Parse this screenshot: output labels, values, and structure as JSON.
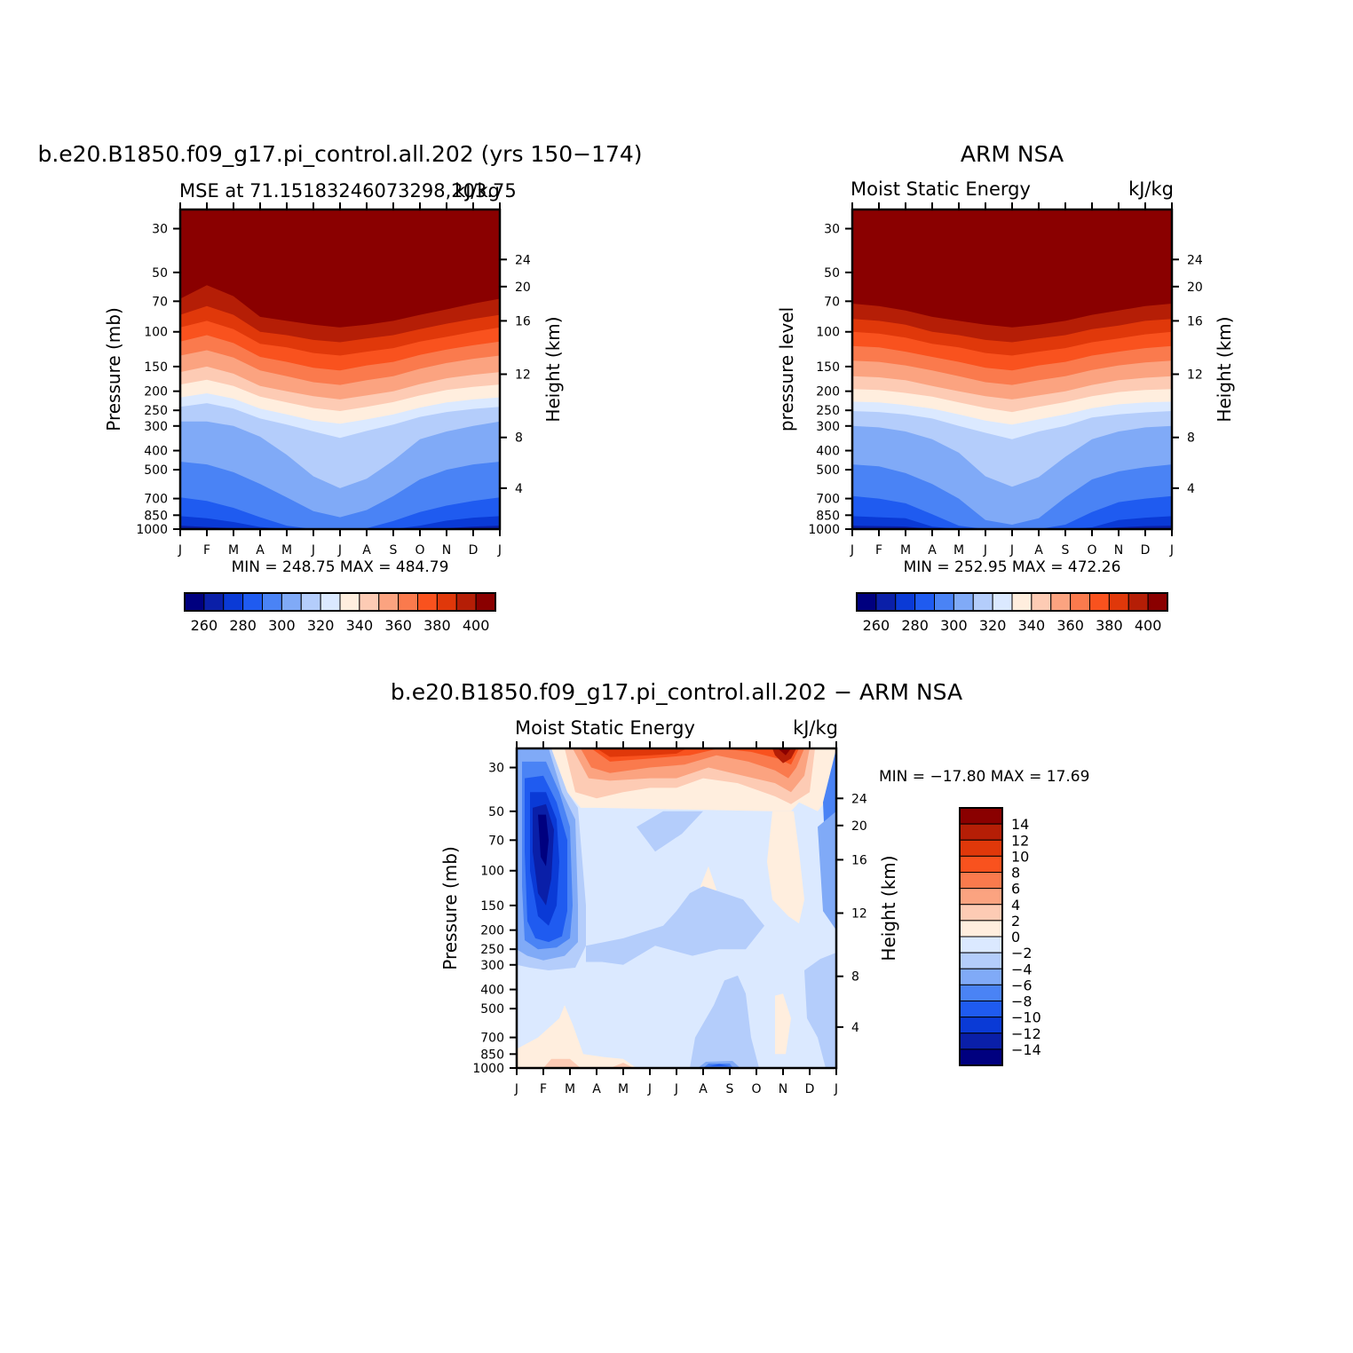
{
  "chart_data": [
    {
      "type": "heatmap",
      "title": "b.e20.B1850.f09_g17.pi_control.all.202 (yrs 150-174)",
      "subtitle_left": "MSE at 71.15183246073298,203.75",
      "subtitle_right": "kJ/kg",
      "ylabel_left": "Pressure (mb)",
      "ylabel_right": "Height (km)",
      "x_ticks": [
        "J",
        "F",
        "M",
        "A",
        "M",
        "J",
        "J",
        "A",
        "S",
        "O",
        "N",
        "D",
        "J"
      ],
      "pressure_ticks": [
        30,
        50,
        70,
        100,
        150,
        200,
        250,
        300,
        400,
        500,
        700,
        850,
        1000
      ],
      "height_ticks": [
        24,
        20,
        16,
        12,
        8,
        4
      ],
      "min_max_text": "MIN = 248.75 MAX = 484.79",
      "colorbar_labels": [
        "260",
        "280",
        "300",
        "320",
        "340",
        "360",
        "380",
        "400"
      ],
      "levels": [
        250,
        260,
        270,
        280,
        290,
        300,
        310,
        320,
        330,
        340,
        350,
        360,
        370,
        380,
        390,
        400
      ],
      "months": [
        "Jan",
        "Feb",
        "Mar",
        "Apr",
        "May",
        "Jun",
        "Jul",
        "Aug",
        "Sep",
        "Oct",
        "Nov",
        "Dec",
        "Jan"
      ],
      "contour_pressure_mb": {
        "400": [
          68,
          58,
          66,
          84,
          88,
          92,
          95,
          92,
          88,
          82,
          77,
          72,
          68
        ],
        "390": [
          82,
          74,
          82,
          100,
          104,
          110,
          113,
          108,
          104,
          97,
          91,
          86,
          82
        ],
        "380": [
          95,
          88,
          97,
          115,
          120,
          128,
          132,
          126,
          121,
          112,
          106,
          100,
          95
        ],
        "370": [
          112,
          104,
          114,
          134,
          142,
          152,
          157,
          148,
          142,
          131,
          123,
          117,
          112
        ],
        "360": [
          132,
          124,
          135,
          157,
          168,
          180,
          186,
          176,
          168,
          154,
          144,
          137,
          132
        ],
        "350": [
          160,
          150,
          163,
          188,
          200,
          212,
          220,
          210,
          200,
          184,
          172,
          165,
          160
        ],
        "340": [
          185,
          175,
          188,
          213,
          228,
          243,
          252,
          240,
          227,
          210,
          197,
          190,
          185
        ],
        "330": [
          215,
          205,
          218,
          245,
          262,
          282,
          292,
          278,
          262,
          242,
          228,
          220,
          215
        ],
        "320": [
          240,
          230,
          245,
          275,
          295,
          320,
          345,
          318,
          295,
          270,
          255,
          246,
          240
        ],
        "310": [
          285,
          285,
          300,
          340,
          420,
          540,
          620,
          555,
          450,
          350,
          320,
          300,
          285
        ],
        "300": [
          455,
          470,
          515,
          590,
          690,
          810,
          870,
          800,
          680,
          560,
          500,
          470,
          455
        ],
        "290": [
          690,
          720,
          780,
          870,
          960,
          1000,
          1000,
          990,
          910,
          820,
          760,
          720,
          690
        ],
        "280": [
          860,
          880,
          920,
          975,
          1000,
          1000,
          1000,
          1000,
          1000,
          960,
          905,
          875,
          860
        ],
        "270": [
          960,
          975,
          990,
          1000,
          1000,
          1000,
          1000,
          1000,
          1000,
          1000,
          990,
          970,
          960
        ],
        "260": [
          995,
          1000,
          1000,
          1000,
          1000,
          1000,
          1000,
          1000,
          1000,
          1000,
          1000,
          1000,
          995
        ]
      }
    },
    {
      "type": "heatmap",
      "title": "ARM NSA",
      "subtitle_left": "Moist Static Energy",
      "subtitle_right": "kJ/kg",
      "ylabel_left": "pressure level",
      "ylabel_right": "Height (km)",
      "x_ticks": [
        "J",
        "F",
        "M",
        "A",
        "M",
        "J",
        "J",
        "A",
        "S",
        "O",
        "N",
        "D",
        "J"
      ],
      "pressure_ticks": [
        30,
        50,
        70,
        100,
        150,
        200,
        250,
        300,
        400,
        500,
        700,
        850,
        1000
      ],
      "height_ticks": [
        24,
        20,
        16,
        12,
        8,
        4
      ],
      "min_max_text": "MIN = 252.95 MAX = 472.26",
      "colorbar_labels": [
        "260",
        "280",
        "300",
        "320",
        "340",
        "360",
        "380",
        "400"
      ],
      "levels": [
        250,
        260,
        270,
        280,
        290,
        300,
        310,
        320,
        330,
        340,
        350,
        360,
        370,
        380,
        390,
        400
      ],
      "months": [
        "Jan",
        "Feb",
        "Mar",
        "Apr",
        "May",
        "Jun",
        "Jul",
        "Aug",
        "Sep",
        "Oct",
        "Nov",
        "Dec",
        "Jan"
      ],
      "contour_pressure_mb": {
        "400": [
          72,
          74,
          78,
          84,
          88,
          92,
          95,
          92,
          88,
          82,
          78,
          74,
          72
        ],
        "390": [
          86,
          88,
          92,
          100,
          104,
          110,
          113,
          108,
          104,
          97,
          93,
          88,
          86
        ],
        "380": [
          100,
          102,
          107,
          115,
          120,
          128,
          132,
          126,
          121,
          113,
          108,
          103,
          100
        ],
        "370": [
          118,
          120,
          126,
          134,
          142,
          152,
          157,
          148,
          142,
          132,
          126,
          121,
          118
        ],
        "360": [
          140,
          142,
          148,
          157,
          168,
          180,
          186,
          176,
          168,
          156,
          148,
          143,
          140
        ],
        "350": [
          168,
          170,
          176,
          188,
          200,
          212,
          220,
          210,
          200,
          186,
          176,
          171,
          168
        ],
        "340": [
          195,
          197,
          204,
          213,
          228,
          243,
          255,
          240,
          227,
          212,
          202,
          197,
          195
        ],
        "330": [
          226,
          228,
          235,
          245,
          262,
          282,
          295,
          278,
          262,
          244,
          233,
          228,
          226
        ],
        "320": [
          252,
          255,
          262,
          275,
          300,
          325,
          350,
          320,
          300,
          272,
          262,
          256,
          252
        ],
        "310": [
          300,
          305,
          320,
          350,
          410,
          540,
          610,
          545,
          430,
          350,
          320,
          305,
          300
        ],
        "300": [
          470,
          480,
          520,
          590,
          700,
          900,
          950,
          880,
          690,
          560,
          510,
          485,
          470
        ],
        "290": [
          680,
          700,
          740,
          840,
          960,
          1000,
          1000,
          1000,
          950,
          820,
          730,
          700,
          680
        ],
        "280": [
          860,
          870,
          880,
          970,
          1000,
          1000,
          1000,
          1000,
          1000,
          980,
          900,
          875,
          860
        ],
        "270": [
          960,
          965,
          970,
          1000,
          1000,
          1000,
          1000,
          1000,
          1000,
          1000,
          980,
          965,
          960
        ],
        "260": [
          990,
          990,
          995,
          1000,
          1000,
          1000,
          1000,
          1000,
          1000,
          1000,
          995,
          990,
          990
        ]
      }
    },
    {
      "type": "heatmap",
      "title": "b.e20.B1850.f09_g17.pi_control.all.202 - ARM NSA",
      "subtitle_left": "Moist Static Energy",
      "subtitle_right": "kJ/kg",
      "ylabel_left": "Pressure (mb)",
      "ylabel_right": "Height (km)",
      "x_ticks": [
        "J",
        "F",
        "M",
        "A",
        "M",
        "J",
        "J",
        "A",
        "S",
        "O",
        "N",
        "D",
        "J"
      ],
      "pressure_ticks": [
        30,
        50,
        70,
        100,
        150,
        200,
        250,
        300,
        400,
        500,
        700,
        850,
        1000
      ],
      "height_ticks": [
        24,
        20,
        16,
        12,
        8,
        4
      ],
      "min_max_text": "MIN = -17.80 MAX = 17.69",
      "colorbar_labels": [
        "14",
        "12",
        "10",
        "8",
        "6",
        "4",
        "2",
        "0",
        "-2",
        "-4",
        "-6",
        "-8",
        "-10",
        "-12",
        "-14"
      ],
      "levels": [
        -16,
        -14,
        -12,
        -10,
        -8,
        -6,
        -4,
        -2,
        0,
        2,
        4,
        6,
        8,
        10,
        12,
        14,
        16
      ],
      "features": [
        {
          "desc_value": -16,
          "months": [
            0.9,
            1.2
          ],
          "pressure_mb": [
            50,
            150
          ]
        },
        {
          "desc_value": -10,
          "months": [
            0.2,
            2.2
          ],
          "pressure_mb": [
            30,
            250
          ]
        },
        {
          "desc_value": 16,
          "months": [
            9.7,
            10.3
          ],
          "pressure_mb": [
            24,
            40
          ]
        },
        {
          "desc_value": 10,
          "months": [
            2.5,
            6.2
          ],
          "pressure_mb": [
            24,
            40
          ]
        },
        {
          "desc_value": -4,
          "months": [
            6.5,
            8.8
          ],
          "pressure_mb": [
            400,
            1000
          ]
        },
        {
          "desc_value": 2,
          "months": [
            9.2,
            10.4
          ],
          "pressure_mb": [
            70,
            170
          ]
        }
      ]
    }
  ]
}
